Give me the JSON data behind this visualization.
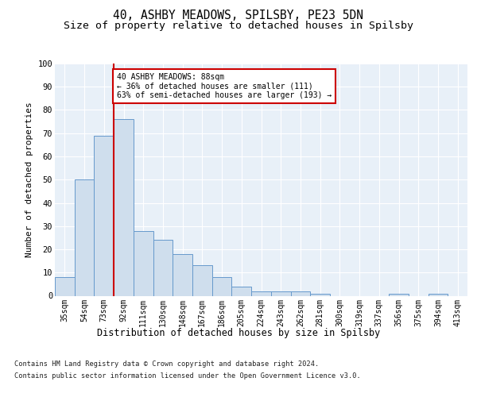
{
  "title1": "40, ASHBY MEADOWS, SPILSBY, PE23 5DN",
  "title2": "Size of property relative to detached houses in Spilsby",
  "xlabel": "Distribution of detached houses by size in Spilsby",
  "ylabel": "Number of detached properties",
  "categories": [
    "35sqm",
    "54sqm",
    "73sqm",
    "92sqm",
    "111sqm",
    "130sqm",
    "148sqm",
    "167sqm",
    "186sqm",
    "205sqm",
    "224sqm",
    "243sqm",
    "262sqm",
    "281sqm",
    "300sqm",
    "319sqm",
    "337sqm",
    "356sqm",
    "375sqm",
    "394sqm",
    "413sqm"
  ],
  "bar_values": [
    8,
    50,
    69,
    76,
    28,
    24,
    18,
    13,
    8,
    4,
    2,
    2,
    2,
    1,
    0,
    0,
    0,
    1,
    0,
    1,
    0
  ],
  "bar_color": "#cfdeed",
  "bar_edge_color": "#6699cc",
  "red_line_x": 2.5,
  "annotation_box_text": "40 ASHBY MEADOWS: 88sqm\n← 36% of detached houses are smaller (111)\n63% of semi-detached houses are larger (193) →",
  "box_edge_color": "#cc0000",
  "footnote1": "Contains HM Land Registry data © Crown copyright and database right 2024.",
  "footnote2": "Contains public sector information licensed under the Open Government Licence v3.0.",
  "ylim": [
    0,
    100
  ],
  "background_color": "#e8f0f8",
  "grid_color": "#ffffff",
  "title_fontsize": 10.5,
  "subtitle_fontsize": 9.5,
  "tick_fontsize": 7,
  "ylabel_fontsize": 8,
  "xlabel_fontsize": 8.5
}
